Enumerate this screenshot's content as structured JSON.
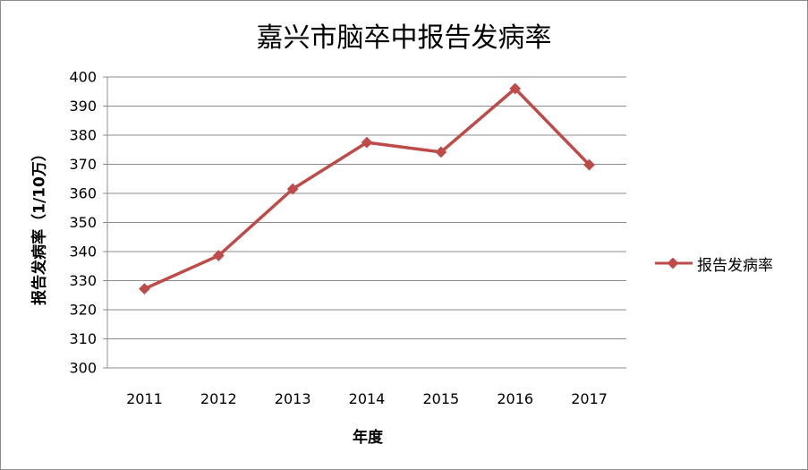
{
  "chart_data": {
    "type": "line",
    "title": "嘉兴市脑卒中报告发病率",
    "xlabel": "年度",
    "ylabel": "报告发病率（1/10万）",
    "categories": [
      "2011",
      "2012",
      "2013",
      "2014",
      "2015",
      "2016",
      "2017"
    ],
    "series": [
      {
        "name": "报告发病率",
        "values": [
          327.2,
          338.6,
          361.5,
          377.5,
          374.2,
          396.0,
          369.8
        ],
        "color": "#be4b48"
      }
    ],
    "yticks": [
      "300",
      "310",
      "320",
      "330",
      "340",
      "350",
      "360",
      "370",
      "380",
      "390",
      "400"
    ],
    "ylim": [
      300,
      400
    ],
    "grid": true,
    "legend_position": "right"
  }
}
